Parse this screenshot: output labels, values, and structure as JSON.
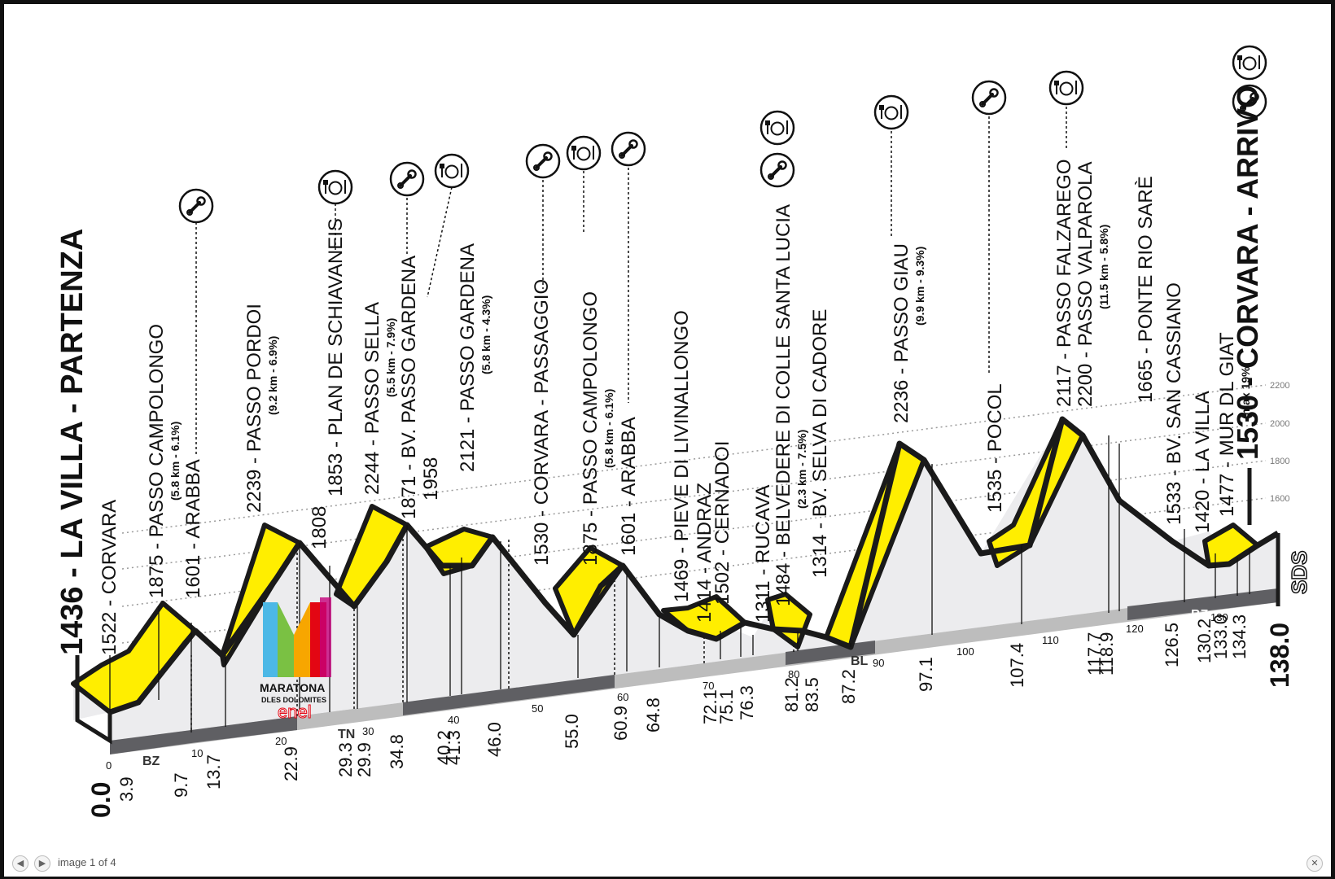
{
  "viewer": {
    "counter": "image 1 of 4",
    "prev_icon": "arrow-left-icon",
    "next_icon": "arrow-right-icon",
    "close_icon": "close-icon"
  },
  "colors": {
    "climb": "#ffee00",
    "profile_fill": "#ececee",
    "outline": "#1a1a1a",
    "road_dark": "#5f5f63",
    "road_light": "#bdbdbd"
  },
  "start": {
    "title": "LA VILLA - PARTENZA",
    "altitude": "1436",
    "km": "0.0"
  },
  "finish": {
    "title": "CORVARA - ARRIVO",
    "altitude": "1530",
    "km": "138.0"
  },
  "logo": {
    "line1": "MARATONA",
    "line2": "DLES DOLOMITES",
    "sponsor": "enel"
  },
  "brand_mark": "SDS",
  "altitude_scale": [
    "1600",
    "1800",
    "2000",
    "2200"
  ],
  "km_ticks": [
    "0",
    "10",
    "20",
    "30",
    "40",
    "50",
    "60",
    "70",
    "80",
    "90",
    "100",
    "110",
    "120",
    "130"
  ],
  "regions": [
    "BZ",
    "BL",
    "TN",
    "BZ",
    "BL",
    "BZ"
  ],
  "points": [
    {
      "km": "3.9",
      "alt": 1522,
      "name": "1522 - CORVARA",
      "sub": ""
    },
    {
      "km": "9.7",
      "alt": 1875,
      "name": "1875 - PASSO CAMPOLONGO",
      "sub": "(5.8 km - 6.1%)"
    },
    {
      "km": "13.7",
      "alt": 1601,
      "name": "1601 - ARABBA",
      "sub": ""
    },
    {
      "km": "22.9",
      "alt": 2239,
      "name": "2239 - PASSO PORDOI",
      "sub": "(9.2 km - 6.9%)"
    },
    {
      "km": "29.3",
      "alt": 1808,
      "name": "1808",
      "sub": ""
    },
    {
      "km": "29.9",
      "alt": 1853,
      "name": "1853 - PLAN DE SCHIAVANEIS",
      "sub": ""
    },
    {
      "km": "34.8",
      "alt": 2244,
      "name": "2244 - PASSO SELLA",
      "sub": "(5.5 km - 7.9%)"
    },
    {
      "km": "40.2",
      "alt": 1871,
      "name": "1871 - BV. PASSO GARDENA",
      "sub": ""
    },
    {
      "km": "41.3",
      "alt": 1958,
      "name": "1958",
      "sub": ""
    },
    {
      "km": "46.0",
      "alt": 2121,
      "name": "2121 - PASSO GARDENA",
      "sub": "(5.8 km - 4.3%)"
    },
    {
      "km": "55.0",
      "alt": 1530,
      "name": "1530 - CORVARA - PASSAGGIO",
      "sub": ""
    },
    {
      "km": "60.9",
      "alt": 1875,
      "name": "1875 - PASSO CAMPOLONGO",
      "sub": "(5.8 km - 6.1%)"
    },
    {
      "km": "64.8",
      "alt": 1601,
      "name": "1601 - ARABBA",
      "sub": ""
    },
    {
      "km": "72.1",
      "alt": 1469,
      "name": "1469 - PIEVE DI LIVINALLONGO",
      "sub": ""
    },
    {
      "km": "75.1",
      "alt": 1414,
      "name": "1414 - ANDRAZ",
      "sub": ""
    },
    {
      "km": "76.3",
      "alt": 1502,
      "name": "1502 - CERNADOI",
      "sub": ""
    },
    {
      "km": "81.2",
      "alt": 1311,
      "name": "1311 - RUCAVA",
      "sub": ""
    },
    {
      "km": "83.5",
      "alt": 1484,
      "name": "1484 - BELVEDERE DI COLLE SANTA LUCIA",
      "sub": "(2.3 km - 7.5%)"
    },
    {
      "km": "87.2",
      "alt": 1314,
      "name": "1314 - BV. SELVA DI CADORE",
      "sub": ""
    },
    {
      "km": "97.1",
      "alt": 2236,
      "name": "2236 - PASSO GIAU",
      "sub": "(9.9 km - 9.3%)"
    },
    {
      "km": "107.4",
      "alt": 1535,
      "name": "1535 - POCOL",
      "sub": ""
    },
    {
      "km": "117.7",
      "alt": 2117,
      "name": "2117 - PASSO FALZAREGO",
      "sub": ""
    },
    {
      "km": "118.9",
      "alt": 2200,
      "name": "2200 - PASSO VALPAROLA",
      "sub": "(11.5 km - 5.8%)"
    },
    {
      "km": "126.5",
      "alt": 1665,
      "name": "1665 - PONTE RIO SARÈ",
      "sub": ""
    },
    {
      "km": "130.2",
      "alt": 1533,
      "name": "1533 - BV. SAN CASSIANO",
      "sub": ""
    },
    {
      "km": "133.0",
      "alt": 1420,
      "name": "1420 - LA VILLA",
      "sub": ""
    },
    {
      "km": "134.3",
      "alt": 1477,
      "name": "1477 - MUR DL GIAT",
      "sub": "(max 19%)"
    }
  ]
}
